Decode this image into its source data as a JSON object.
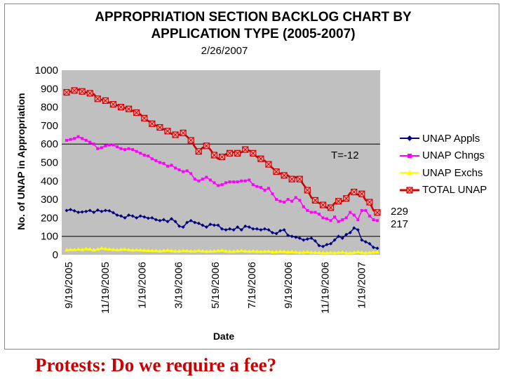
{
  "footer_text": "Protests:  Do we require a fee?",
  "chart_data": {
    "type": "line",
    "title": "APPROPRIATION SECTION BACKLOG CHART BY",
    "title_line2": "APPLICATION TYPE (2005-2007)",
    "subtitle": "2/26/2007",
    "xlabel": "Date",
    "ylabel": "No. of UNAP in Appropriation",
    "ylim": [
      0,
      1000
    ],
    "yticks": [
      0,
      100,
      200,
      300,
      400,
      500,
      600,
      700,
      800,
      900,
      1000
    ],
    "xticks": [
      "9/19/2005",
      "11/19/2005",
      "1/19/2006",
      "3/19/2006",
      "5/19/2006",
      "7/19/2006",
      "9/19/2006",
      "11/19/2006",
      "1/19/2007"
    ],
    "gridlines": [
      100,
      600
    ],
    "grid": "horizontal lines at 100 and 600",
    "legend_position": "right",
    "plot_background": "#c0c0c0",
    "annotation": "T=-12",
    "end_labels": [
      "229",
      "217"
    ],
    "x_range": [
      "9/19/2005",
      "2/26/2007"
    ],
    "series": [
      {
        "name": "UNAP Appls",
        "color": "#000080",
        "values": [
          240,
          245,
          238,
          230,
          232,
          235,
          240,
          230,
          242,
          235,
          240,
          238,
          228,
          215,
          210,
          200,
          215,
          210,
          200,
          210,
          205,
          198,
          200,
          190,
          185,
          190,
          180,
          195,
          180,
          155,
          150,
          175,
          185,
          175,
          170,
          160,
          150,
          165,
          160,
          160,
          140,
          135,
          140,
          135,
          150,
          135,
          155,
          150,
          140,
          140,
          135,
          140,
          135,
          120,
          115,
          130,
          135,
          105,
          100,
          95,
          90,
          80,
          85,
          90,
          75,
          50,
          45,
          55,
          60,
          80,
          100,
          90,
          110,
          120,
          145,
          135,
          80,
          70,
          60,
          40,
          35
        ]
      },
      {
        "name": "UNAP Chngs",
        "color": "#ff00ff",
        "values": [
          620,
          625,
          630,
          640,
          630,
          620,
          610,
          600,
          575,
          580,
          590,
          595,
          595,
          585,
          575,
          570,
          575,
          570,
          560,
          550,
          540,
          535,
          520,
          510,
          500,
          495,
          480,
          485,
          470,
          460,
          450,
          455,
          440,
          410,
          400,
          410,
          420,
          405,
          390,
          375,
          380,
          390,
          395,
          395,
          395,
          400,
          400,
          405,
          380,
          370,
          365,
          350,
          360,
          330,
          300,
          290,
          285,
          300,
          290,
          310,
          295,
          260,
          240,
          230,
          230,
          220,
          200,
          195,
          185,
          205,
          180,
          190,
          200,
          230,
          215,
          190,
          240,
          240,
          210,
          190,
          185
        ]
      },
      {
        "name": "UNAP Exchs",
        "color": "#ffff00",
        "values": [
          25,
          28,
          27,
          30,
          28,
          32,
          30,
          25,
          30,
          35,
          32,
          30,
          28,
          26,
          28,
          30,
          27,
          25,
          26,
          25,
          24,
          23,
          22,
          22,
          20,
          22,
          24,
          22,
          20,
          20,
          22,
          21,
          20,
          20,
          22,
          20,
          18,
          19,
          20,
          22,
          24,
          20,
          18,
          18,
          20,
          22,
          20,
          18,
          20,
          18,
          17,
          18,
          19,
          15,
          16,
          18,
          17,
          15,
          16,
          14,
          12,
          14,
          15,
          13,
          12,
          12,
          10,
          10,
          12,
          10,
          12,
          14,
          10,
          10,
          12,
          15,
          12,
          10,
          12,
          14,
          15
        ]
      },
      {
        "name": "TOTAL UNAP",
        "color": "#cc0000",
        "values": [
          880,
          885,
          890,
          895,
          885,
          880,
          875,
          870,
          845,
          840,
          835,
          825,
          815,
          810,
          800,
          795,
          790,
          780,
          770,
          760,
          740,
          725,
          710,
          700,
          690,
          680,
          670,
          655,
          650,
          650,
          660,
          640,
          620,
          585,
          560,
          580,
          590,
          570,
          540,
          520,
          530,
          545,
          550,
          555,
          550,
          555,
          570,
          565,
          550,
          530,
          520,
          510,
          490,
          470,
          450,
          440,
          430,
          430,
          410,
          420,
          410,
          380,
          350,
          310,
          295,
          280,
          270,
          255,
          255,
          280,
          290,
          290,
          305,
          335,
          340,
          325,
          330,
          295,
          285,
          240,
          229
        ]
      }
    ]
  }
}
